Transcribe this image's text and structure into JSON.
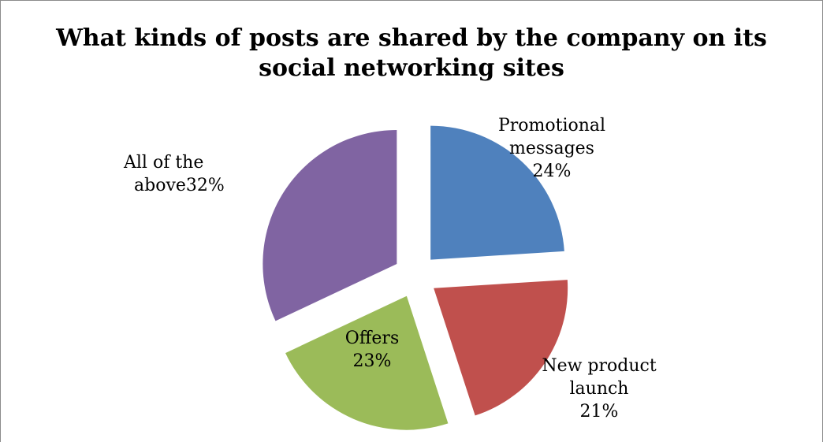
{
  "chart_data": {
    "type": "pie",
    "title_lines": [
      "What kinds of posts are shared by the company on its",
      "social networking sites"
    ],
    "slices": [
      {
        "label_lines": [
          "Promotional",
          "messages",
          "24%"
        ],
        "value": 24,
        "color": "#4f81bd"
      },
      {
        "label_lines": [
          "New product",
          "launch",
          "21%"
        ],
        "value": 21,
        "color": "#c0504d"
      },
      {
        "label_lines": [
          "Offers",
          "23%"
        ],
        "value": 23,
        "color": "#9bbb59"
      },
      {
        "label_lines": [
          "All of the",
          "above32%"
        ],
        "value": 32,
        "color": "#8064a2"
      }
    ],
    "legend": "none",
    "exploded": true
  }
}
